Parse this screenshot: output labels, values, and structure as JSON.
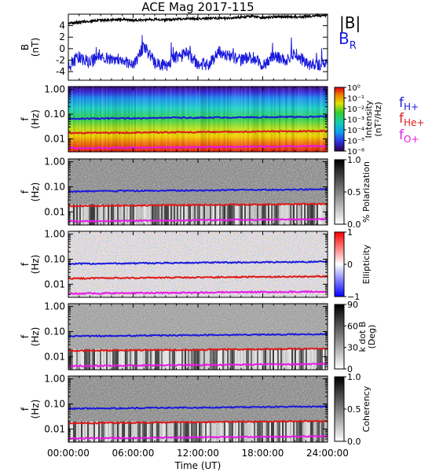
{
  "title": "ACE Mag 2017-115",
  "time_axis": {
    "label": "Time (UT)",
    "ticks": [
      "00:00:00",
      "06:00:00",
      "12:00:00",
      "18:00:00",
      "24:00:00"
    ],
    "range_hours": [
      0,
      24
    ]
  },
  "legend": {
    "B_total": {
      "label": "|B|",
      "color": "#000000"
    },
    "B_R": {
      "label": "B",
      "sub": "R",
      "color": "#1a1adc"
    },
    "f_H": {
      "label": "f",
      "sub": "H+",
      "color": "#1a1adc"
    },
    "f_He": {
      "label": "f",
      "sub": "He+",
      "color": "#dc1a1a"
    },
    "f_O": {
      "label": "f",
      "sub": "O+",
      "color": "#e619e6"
    }
  },
  "chart_data": [
    {
      "type": "line",
      "ylabel": "B (nT)",
      "ylabel_parts": [
        "B",
        "(nT)"
      ],
      "ylim": [
        -5.5,
        6
      ],
      "yticks": [
        "4",
        "2",
        "0",
        "-2",
        "-4"
      ],
      "ytick_values": [
        4,
        2,
        0,
        -2,
        -4
      ],
      "series": [
        {
          "name": "|B|",
          "color": "#000000",
          "x": [
            0,
            1,
            2,
            3,
            4,
            5,
            6,
            7,
            8,
            9,
            10,
            11,
            12,
            13,
            14,
            15,
            16,
            17,
            18,
            19,
            20,
            21,
            22,
            23,
            24
          ],
          "y": [
            4.4,
            4.6,
            4.8,
            4.9,
            5.0,
            5.1,
            4.9,
            5.0,
            5.1,
            5.0,
            5.1,
            5.2,
            5.2,
            5.3,
            5.3,
            5.3,
            5.5,
            5.6,
            5.4,
            5.5,
            5.6,
            5.5,
            5.6,
            5.7,
            5.8
          ]
        },
        {
          "name": "B_R",
          "color": "#1a1adc",
          "x": [
            0,
            1,
            2,
            3,
            4,
            5,
            6,
            7,
            8,
            9,
            10,
            11,
            12,
            13,
            14,
            15,
            16,
            17,
            18,
            19,
            20,
            21,
            22,
            23,
            24
          ],
          "y": [
            -3.0,
            -1.5,
            -2.5,
            -1.0,
            -2.0,
            -1.8,
            -3.2,
            0.5,
            -2.5,
            -3.0,
            -1.5,
            -1.0,
            -2.5,
            -2.8,
            -0.5,
            -1.5,
            -2.0,
            -1.5,
            -3.0,
            -1.2,
            -2.2,
            -0.8,
            -2.5,
            -3.0,
            -2.5
          ]
        }
      ]
    },
    {
      "type": "heatmap",
      "ylabel": "f (Hz)",
      "ylabel_parts": [
        "f",
        "(Hz)"
      ],
      "yscale": "log",
      "ylim": [
        0.003,
        1.3
      ],
      "yticks": [
        "1.00",
        "0.10",
        "0.01"
      ],
      "ytick_values": [
        1,
        0.1,
        0.01
      ],
      "colorbar": {
        "label": "Intensity",
        "unit": "(nT²/Hz)",
        "scale": "log",
        "ticks": [
          "10⁰",
          "10⁻¹",
          "10⁻²",
          "10⁻³",
          "10⁻⁴",
          "10⁻⁵",
          "10⁻⁶"
        ],
        "tick_values": [
          1,
          0.1,
          0.01,
          0.001,
          0.0001,
          1e-05,
          1e-06
        ],
        "map": "rainbow"
      },
      "lines": {
        "f_H": 0.065,
        "f_He": 0.017,
        "f_O": 0.0042
      }
    },
    {
      "type": "heatmap",
      "ylabel": "f (Hz)",
      "ylabel_parts": [
        "f",
        "(Hz)"
      ],
      "yscale": "log",
      "ylim": [
        0.003,
        1.3
      ],
      "yticks": [
        "1.00",
        "0.10",
        "0.01"
      ],
      "ytick_values": [
        1,
        0.1,
        0.01
      ],
      "colorbar": {
        "label": "% Polarization",
        "ticks": [
          "1.0",
          "0.5",
          "0.0"
        ],
        "tick_values": [
          1,
          0.5,
          0
        ],
        "map": "gray"
      },
      "lines": {
        "f_H": 0.065,
        "f_He": 0.017,
        "f_O": 0.0042
      }
    },
    {
      "type": "heatmap",
      "ylabel": "f (Hz)",
      "ylabel_parts": [
        "f",
        "(Hz)"
      ],
      "yscale": "log",
      "ylim": [
        0.003,
        1.3
      ],
      "yticks": [
        "1.00",
        "0.10",
        "0.01"
      ],
      "ytick_values": [
        1,
        0.1,
        0.01
      ],
      "colorbar": {
        "label": "Ellipticity",
        "ticks": [
          "1",
          "0",
          "−1"
        ],
        "tick_values": [
          1,
          0,
          -1
        ],
        "map": "bwr"
      },
      "lines": {
        "f_H": 0.065,
        "f_He": 0.017,
        "f_O": 0.0042
      }
    },
    {
      "type": "heatmap",
      "ylabel": "f (Hz)",
      "ylabel_parts": [
        "f",
        "(Hz)"
      ],
      "yscale": "log",
      "ylim": [
        0.003,
        1.3
      ],
      "yticks": [
        "1.00",
        "0.10",
        "0.01"
      ],
      "ytick_values": [
        1,
        0.1,
        0.01
      ],
      "colorbar": {
        "label": "k dot B",
        "unit": "(Deg)",
        "ticks": [
          "90",
          "60",
          "30",
          "0"
        ],
        "tick_values": [
          90,
          60,
          30,
          0
        ],
        "map": "gray"
      },
      "lines": {
        "f_H": 0.065,
        "f_He": 0.017,
        "f_O": 0.0042
      }
    },
    {
      "type": "heatmap",
      "ylabel": "f (Hz)",
      "ylabel_parts": [
        "f",
        "(Hz)"
      ],
      "yscale": "log",
      "ylim": [
        0.003,
        1.3
      ],
      "yticks": [
        "1.00",
        "0.10",
        "0.01"
      ],
      "ytick_values": [
        1,
        0.1,
        0.01
      ],
      "colorbar": {
        "label": "Coherency",
        "ticks": [
          "1.0",
          "0.5",
          "0.0"
        ],
        "tick_values": [
          1,
          0.5,
          0
        ],
        "map": "gray"
      },
      "lines": {
        "f_H": 0.065,
        "f_He": 0.017,
        "f_O": 0.0042
      }
    }
  ]
}
